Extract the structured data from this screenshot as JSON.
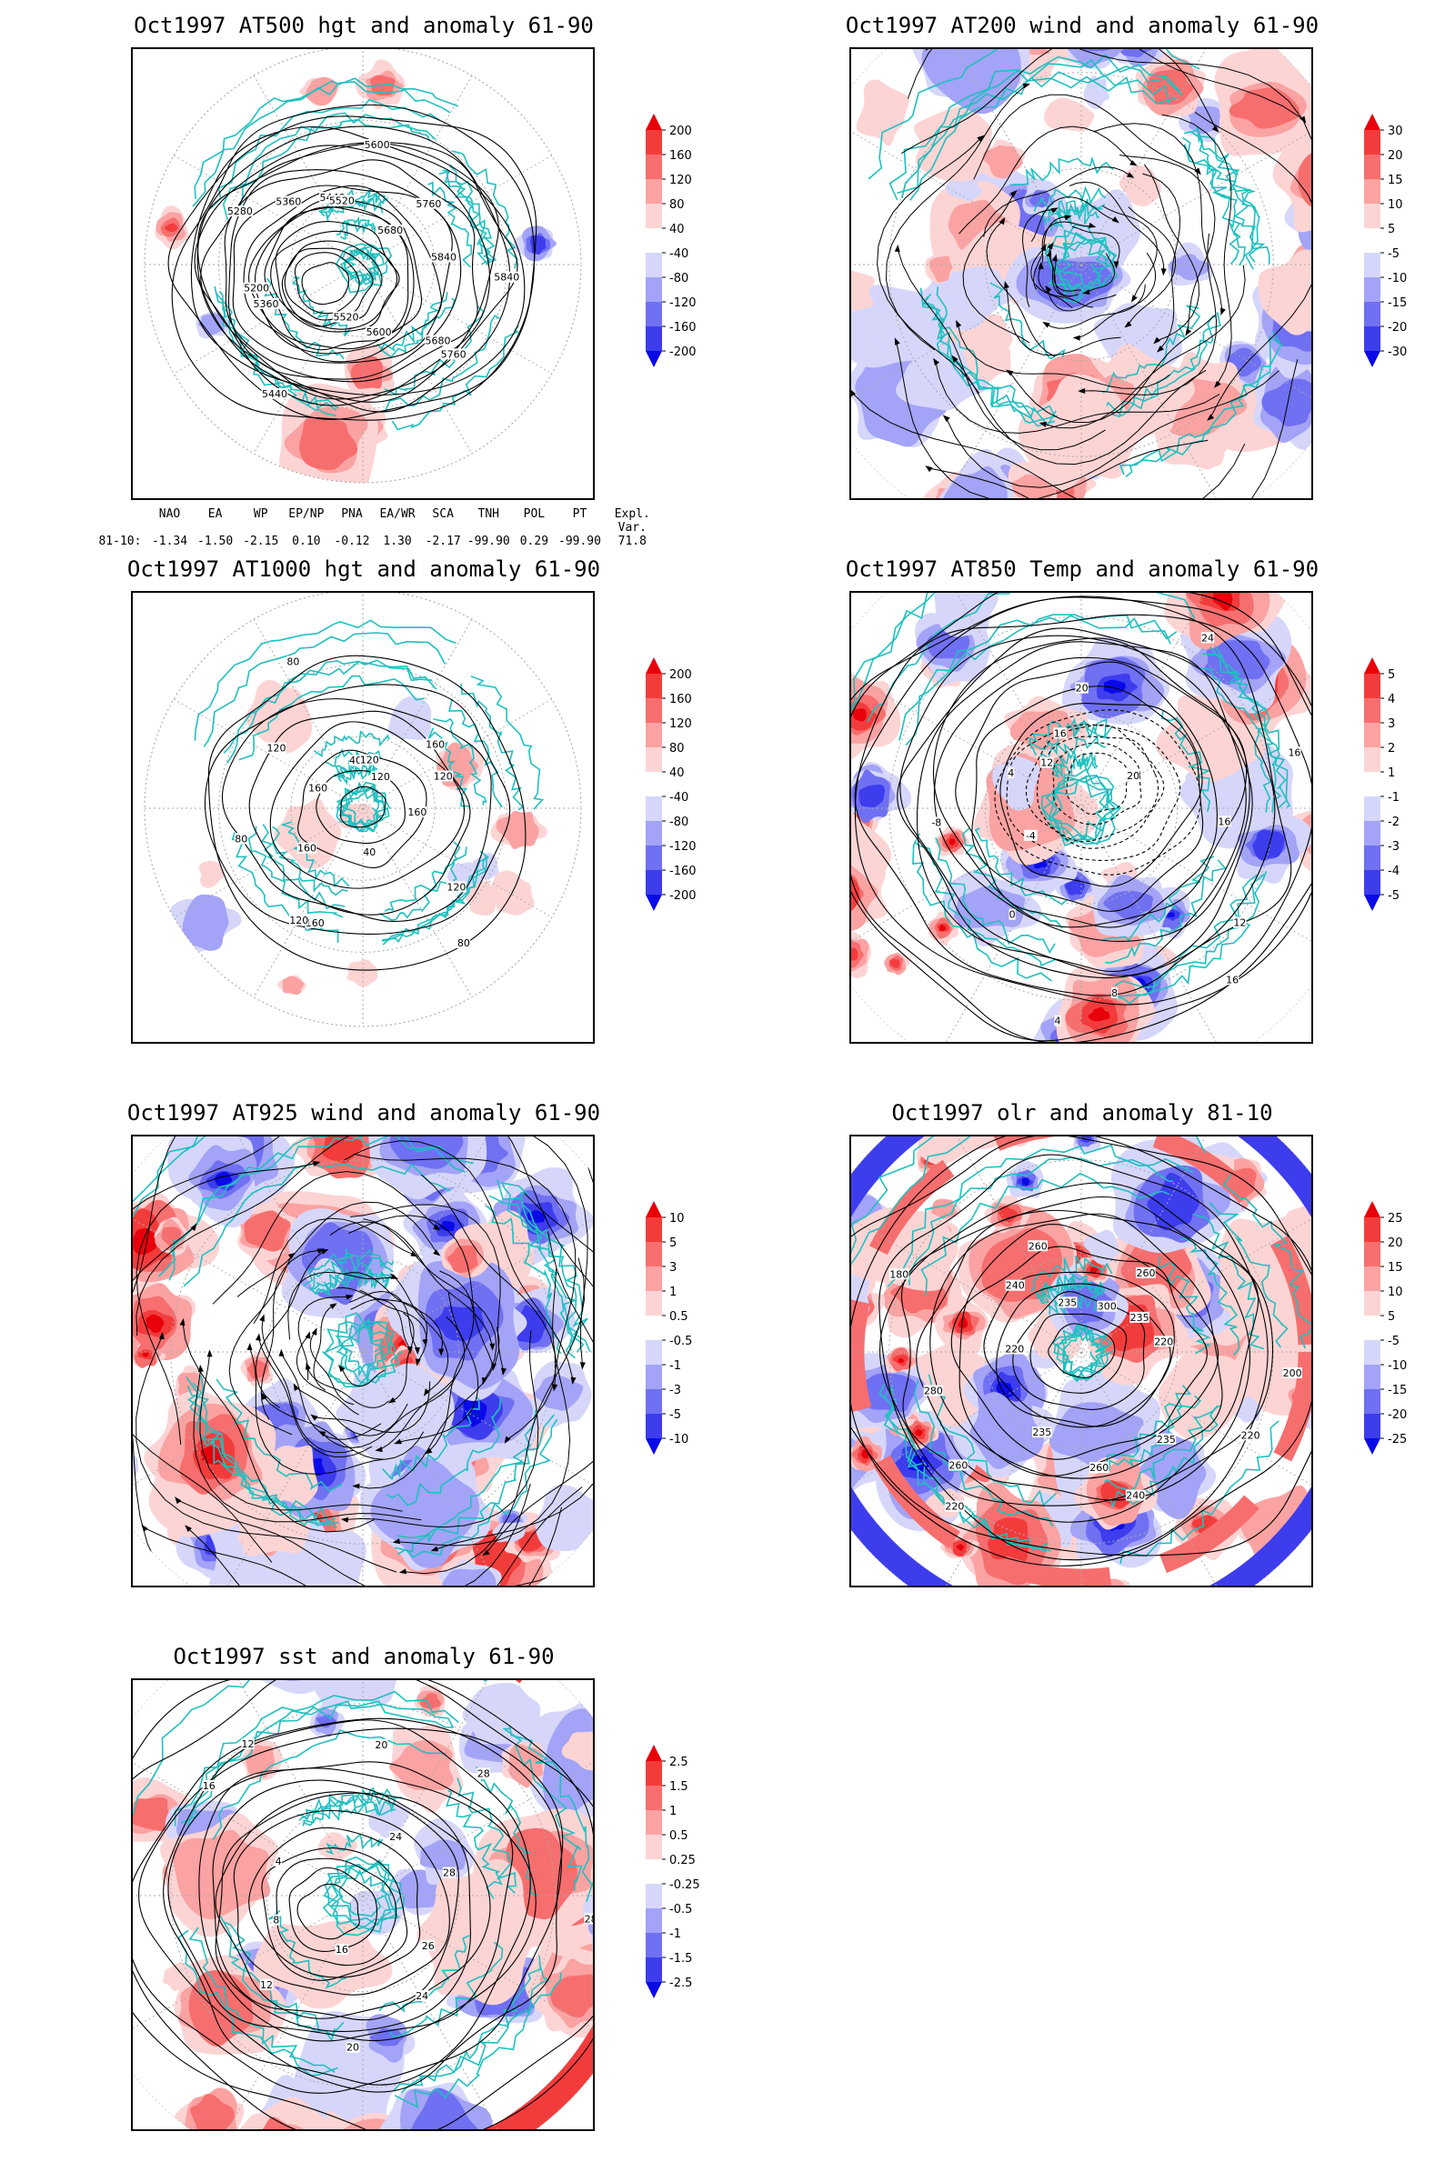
{
  "panels": [
    {
      "title": "Oct1997 AT500 hgt and anomaly 61-90",
      "colorbar": [
        "200",
        "160",
        "120",
        "80",
        "40",
        "-40",
        "-80",
        "-120",
        "-160",
        "-200"
      ],
      "contour_labels": [
        "5840",
        "5760",
        "5680",
        "5600",
        "5520",
        "5440",
        "5360",
        "5200",
        "5280",
        "5360",
        "5440",
        "5520",
        "5600",
        "5680",
        "5760",
        "5840"
      ]
    },
    {
      "title": "Oct1997 AT200 wind and anomaly 61-90",
      "colorbar": [
        "30",
        "20",
        "15",
        "10",
        "5",
        "-5",
        "-10",
        "-15",
        "-20",
        "-30"
      ],
      "contour_labels": []
    },
    {
      "title": "Oct1997 AT1000 hgt and anomaly 61-90",
      "colorbar": [
        "200",
        "160",
        "120",
        "80",
        "40",
        "-40",
        "-80",
        "-120",
        "-160",
        "-200"
      ],
      "contour_labels": [
        "160",
        "120",
        "80",
        "40",
        "160",
        "120",
        "160",
        "80",
        "160",
        "120",
        "80",
        "40",
        "120",
        "120",
        "160",
        "120"
      ]
    },
    {
      "title": "Oct1997 AT850 Temp and anomaly 61-90",
      "colorbar": [
        "5",
        "4",
        "3",
        "2",
        "1",
        "-1",
        "-2",
        "-3",
        "-4",
        "-5"
      ],
      "contour_labels": [
        "16",
        "12",
        "16",
        "8",
        "4",
        "0",
        "-4",
        "-8",
        "4",
        "12",
        "16",
        "20",
        "24",
        "20",
        "16"
      ]
    },
    {
      "title": "Oct1997 AT925 wind and anomaly 61-90",
      "colorbar": [
        "10",
        "5",
        "3",
        "1",
        "0.5",
        "-0.5",
        "-1",
        "-3",
        "-5",
        "-10"
      ],
      "contour_labels": []
    },
    {
      "title": "Oct1997 olr and anomaly 81-10",
      "colorbar": [
        "25",
        "20",
        "15",
        "10",
        "5",
        "-5",
        "-10",
        "-15",
        "-20",
        "-25"
      ],
      "contour_labels": [
        "200",
        "220",
        "235",
        "240",
        "260",
        "235",
        "220",
        "260",
        "280",
        "220",
        "180",
        "240",
        "260",
        "235",
        "280",
        "300",
        "260",
        "235",
        "220"
      ]
    },
    {
      "title": "Oct1997 sst and anomaly 61-90",
      "colorbar": [
        "2.5",
        "1.5",
        "1",
        "0.5",
        "0.25",
        "-0.25",
        "-0.5",
        "-1",
        "-1.5",
        "-2.5"
      ],
      "contour_labels": [
        "28",
        "26",
        "24",
        "20",
        "16",
        "12",
        "8",
        "4",
        "16",
        "12",
        "20",
        "24",
        "28",
        "28"
      ]
    }
  ],
  "teleconnection": {
    "headers": [
      "NAO",
      "EA",
      "WP",
      "EP/NP",
      "PNA",
      "EA/WR",
      "SCA",
      "TNH",
      "POL",
      "PT"
    ],
    "row_label": "81-10:",
    "values": [
      "-1.34",
      "-1.50",
      "-2.15",
      "0.10",
      "-0.12",
      "1.30",
      "-2.17",
      "-99.90",
      "0.29",
      "-99.90"
    ],
    "expl_header": "Expl. Var.",
    "expl_value": "71.8"
  },
  "colors": {
    "coast": "#20c0c0",
    "contour": "#000000",
    "grid": "#aaaaaa",
    "colorbar": [
      "#e8000a",
      "#f23c3c",
      "#f76e6e",
      "#fba2a2",
      "#fdd4d4",
      "#ffffff",
      "#d6d6fb",
      "#a3a3f7",
      "#7070f2",
      "#3d3dee",
      "#0a0ae8"
    ]
  }
}
